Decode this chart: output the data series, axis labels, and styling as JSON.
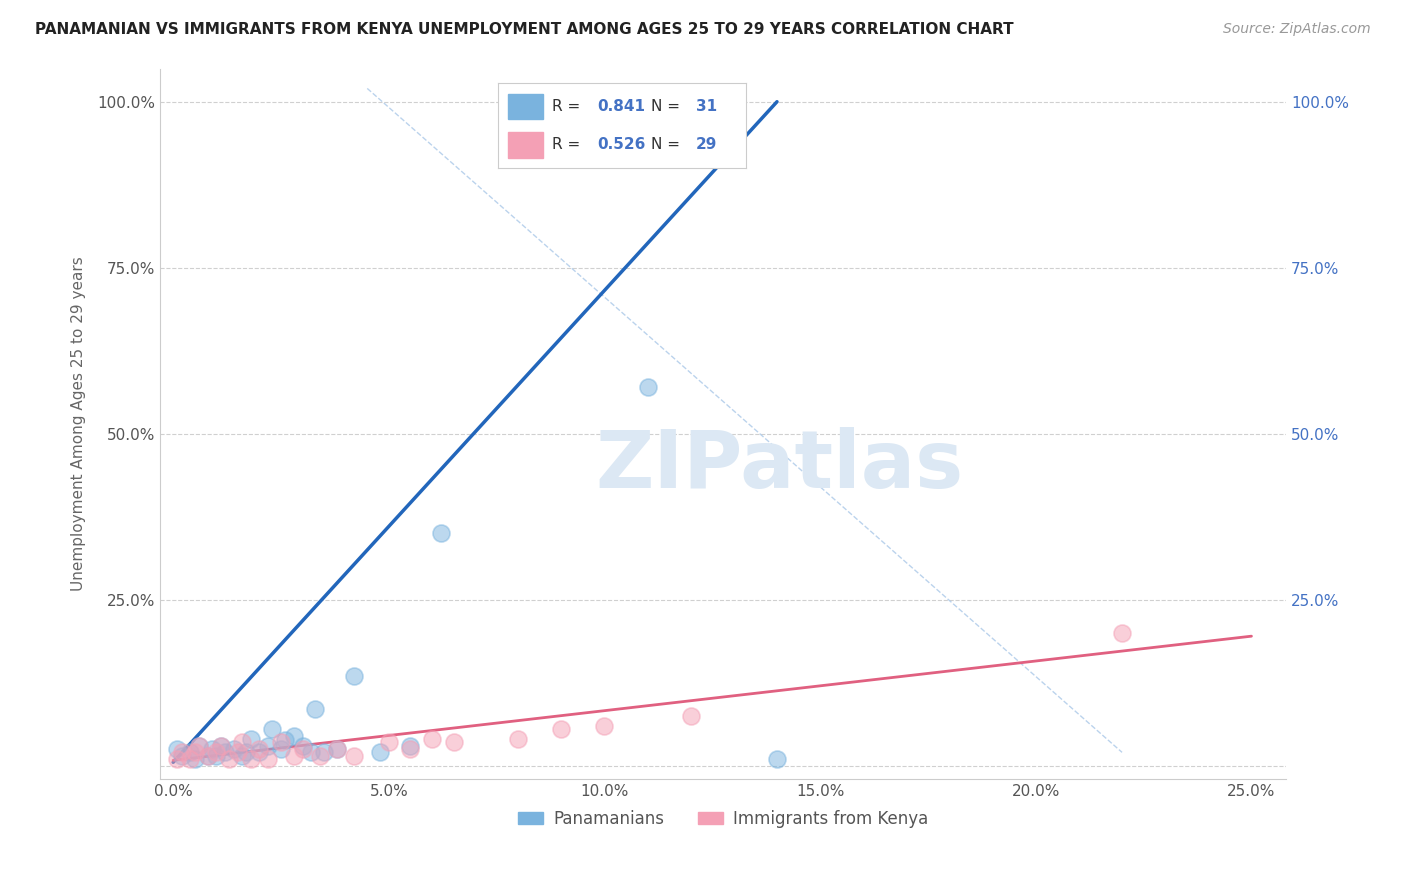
{
  "title": "PANAMANIAN VS IMMIGRANTS FROM KENYA UNEMPLOYMENT AMONG AGES 25 TO 29 YEARS CORRELATION CHART",
  "source": "Source: ZipAtlas.com",
  "ylabel_left": "Unemployment Among Ages 25 to 29 years",
  "xlim": [
    -0.003,
    0.258
  ],
  "ylim": [
    -0.02,
    1.05
  ],
  "xticks": [
    0.0,
    0.05,
    0.1,
    0.15,
    0.2,
    0.25
  ],
  "xtick_labels": [
    "0.0%",
    "5.0%",
    "10.0%",
    "15.0%",
    "20.0%",
    "25.0%"
  ],
  "yticks_left": [
    0.0,
    0.25,
    0.5,
    0.75,
    1.0
  ],
  "ytick_labels_left": [
    "",
    "25.0%",
    "50.0%",
    "75.0%",
    "100.0%"
  ],
  "yticks_right": [
    0.0,
    0.25,
    0.5,
    0.75,
    1.0
  ],
  "ytick_labels_right": [
    "",
    "25.0%",
    "50.0%",
    "75.0%",
    "100.0%"
  ],
  "R_blue": "0.841",
  "N_blue": "31",
  "R_pink": "0.526",
  "N_pink": "29",
  "blue_color": "#7ab3de",
  "pink_color": "#f4a0b5",
  "blue_line_color": "#2266bb",
  "pink_line_color": "#e06080",
  "accent_color": "#4472c4",
  "legend_blue_label": "Panamanians",
  "legend_pink_label": "Immigrants from Kenya",
  "blue_scatter_x": [
    0.001,
    0.002,
    0.004,
    0.005,
    0.006,
    0.008,
    0.009,
    0.01,
    0.011,
    0.012,
    0.014,
    0.016,
    0.017,
    0.018,
    0.02,
    0.022,
    0.023,
    0.025,
    0.026,
    0.028,
    0.03,
    0.032,
    0.033,
    0.035,
    0.038,
    0.042,
    0.048,
    0.055,
    0.062,
    0.11,
    0.14
  ],
  "blue_scatter_y": [
    0.025,
    0.015,
    0.02,
    0.01,
    0.03,
    0.015,
    0.025,
    0.015,
    0.03,
    0.02,
    0.025,
    0.015,
    0.02,
    0.04,
    0.02,
    0.03,
    0.055,
    0.025,
    0.038,
    0.045,
    0.03,
    0.02,
    0.085,
    0.02,
    0.025,
    0.135,
    0.02,
    0.03,
    0.35,
    0.57,
    0.01
  ],
  "pink_scatter_x": [
    0.001,
    0.002,
    0.004,
    0.005,
    0.006,
    0.008,
    0.01,
    0.011,
    0.013,
    0.015,
    0.016,
    0.018,
    0.02,
    0.022,
    0.025,
    0.028,
    0.03,
    0.034,
    0.038,
    0.042,
    0.05,
    0.055,
    0.06,
    0.065,
    0.08,
    0.09,
    0.1,
    0.12,
    0.22
  ],
  "pink_scatter_y": [
    0.01,
    0.02,
    0.01,
    0.02,
    0.03,
    0.015,
    0.02,
    0.03,
    0.01,
    0.02,
    0.035,
    0.01,
    0.025,
    0.01,
    0.035,
    0.015,
    0.025,
    0.015,
    0.025,
    0.015,
    0.035,
    0.025,
    0.04,
    0.035,
    0.04,
    0.055,
    0.06,
    0.075,
    0.2
  ],
  "blue_line_x": [
    0.0,
    0.14
  ],
  "blue_line_y": [
    0.005,
    1.0
  ],
  "pink_line_x": [
    0.0,
    0.25
  ],
  "pink_line_y": [
    0.008,
    0.195
  ],
  "diag_line_x": [
    0.045,
    0.22
  ],
  "diag_line_y": [
    1.02,
    0.02
  ],
  "background_color": "#ffffff",
  "grid_color": "#d0d0d0",
  "watermark_text": "ZIPatlas",
  "watermark_color": "#dce8f4"
}
